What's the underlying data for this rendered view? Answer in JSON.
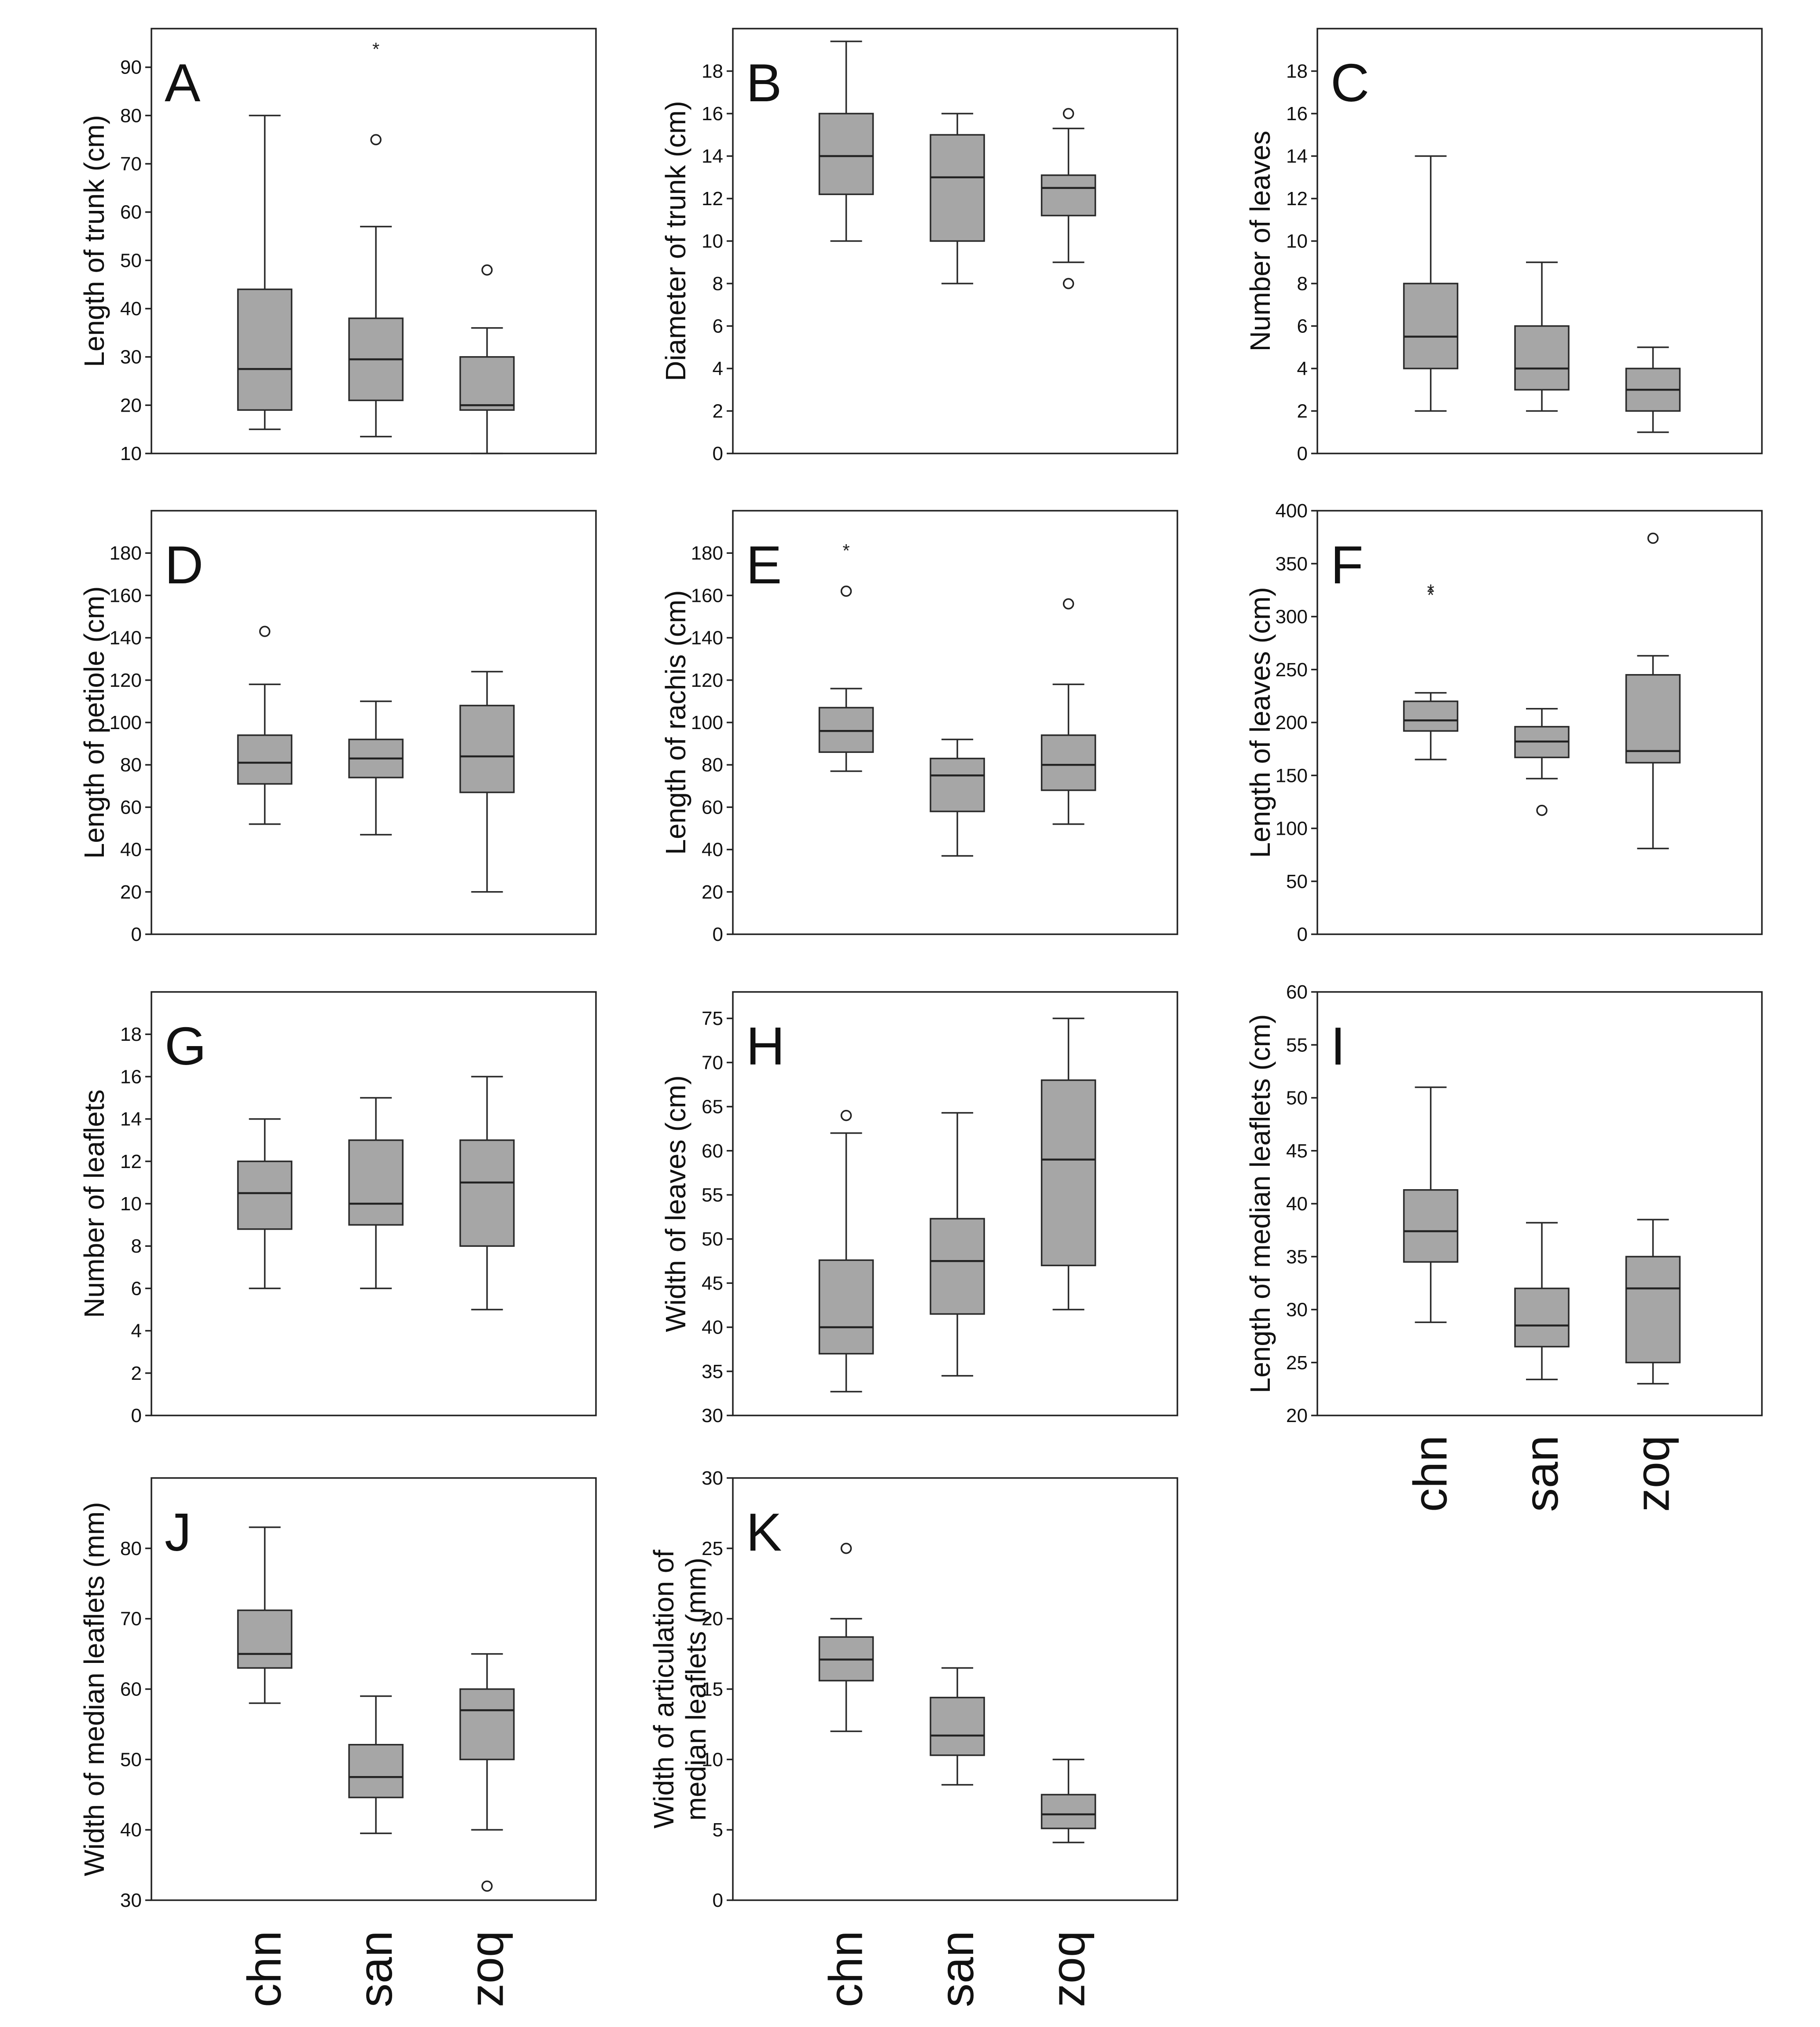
{
  "chart_data": [
    {
      "type": "boxplot",
      "panel": "A",
      "ylabel": "Length of trunk (cm)",
      "ylim": [
        10,
        98
      ],
      "yticks": [
        10,
        20,
        30,
        40,
        50,
        60,
        70,
        80,
        90
      ],
      "groups": [
        {
          "category": "chn",
          "whisker_low": 15,
          "q1": 19,
          "median": 27.5,
          "q3": 44,
          "whisker_high": 80,
          "outliers": [],
          "extremes": []
        },
        {
          "category": "san",
          "whisker_low": 13.5,
          "q1": 21,
          "median": 29.5,
          "q3": 38,
          "whisker_high": 57,
          "outliers": [
            75
          ],
          "extremes": [
            95
          ]
        },
        {
          "category": "zoq",
          "whisker_low": 10,
          "q1": 19,
          "median": 20,
          "q3": 30,
          "whisker_high": 36,
          "outliers": [
            48
          ],
          "extremes": []
        }
      ]
    },
    {
      "type": "boxplot",
      "panel": "B",
      "ylabel": "Diameter of trunk (cm)",
      "ylim": [
        0,
        20
      ],
      "yticks": [
        0,
        2,
        4,
        6,
        8,
        10,
        12,
        14,
        16,
        18
      ],
      "groups": [
        {
          "category": "chn",
          "whisker_low": 10,
          "q1": 12.2,
          "median": 14,
          "q3": 16,
          "whisker_high": 19.4,
          "outliers": [],
          "extremes": []
        },
        {
          "category": "san",
          "whisker_low": 8,
          "q1": 10,
          "median": 13,
          "q3": 15,
          "whisker_high": 16,
          "outliers": [],
          "extremes": []
        },
        {
          "category": "zoq",
          "whisker_low": 9,
          "q1": 11.2,
          "median": 12.5,
          "q3": 13.1,
          "whisker_high": 15.3,
          "outliers": [
            8,
            16
          ],
          "extremes": []
        }
      ]
    },
    {
      "type": "boxplot",
      "panel": "C",
      "ylabel": "Number of leaves",
      "ylim": [
        0,
        20
      ],
      "yticks": [
        0,
        2,
        4,
        6,
        8,
        10,
        12,
        14,
        16,
        18
      ],
      "groups": [
        {
          "category": "chn",
          "whisker_low": 2,
          "q1": 4,
          "median": 5.5,
          "q3": 8,
          "whisker_high": 14,
          "outliers": [],
          "extremes": []
        },
        {
          "category": "san",
          "whisker_low": 2,
          "q1": 3,
          "median": 4,
          "q3": 6,
          "whisker_high": 9,
          "outliers": [],
          "extremes": []
        },
        {
          "category": "zoq",
          "whisker_low": 1,
          "q1": 2,
          "median": 3,
          "q3": 4,
          "whisker_high": 5,
          "outliers": [],
          "extremes": []
        }
      ]
    },
    {
      "type": "boxplot",
      "panel": "D",
      "ylabel": "Length of petiole (cm)",
      "ylim": [
        0,
        200
      ],
      "yticks": [
        0,
        20,
        40,
        60,
        80,
        100,
        120,
        140,
        160,
        180
      ],
      "groups": [
        {
          "category": "chn",
          "whisker_low": 52,
          "q1": 71,
          "median": 81,
          "q3": 94,
          "whisker_high": 118,
          "outliers": [
            143
          ],
          "extremes": []
        },
        {
          "category": "san",
          "whisker_low": 47,
          "q1": 74,
          "median": 83,
          "q3": 92,
          "whisker_high": 110,
          "outliers": [],
          "extremes": []
        },
        {
          "category": "zoq",
          "whisker_low": 20,
          "q1": 67,
          "median": 84,
          "q3": 108,
          "whisker_high": 124,
          "outliers": [],
          "extremes": []
        }
      ]
    },
    {
      "type": "boxplot",
      "panel": "E",
      "ylabel": "Length of rachis (cm)",
      "ylim": [
        0,
        200
      ],
      "yticks": [
        0,
        20,
        40,
        60,
        80,
        100,
        120,
        140,
        160,
        180
      ],
      "groups": [
        {
          "category": "chn",
          "whisker_low": 77,
          "q1": 86,
          "median": 96,
          "q3": 107,
          "whisker_high": 116,
          "outliers": [
            162
          ],
          "extremes": [
            184
          ]
        },
        {
          "category": "san",
          "whisker_low": 37,
          "q1": 58,
          "median": 75,
          "q3": 83,
          "whisker_high": 92,
          "outliers": [],
          "extremes": []
        },
        {
          "category": "zoq",
          "whisker_low": 52,
          "q1": 68,
          "median": 80,
          "q3": 94,
          "whisker_high": 118,
          "outliers": [
            156
          ],
          "extremes": []
        }
      ]
    },
    {
      "type": "boxplot",
      "panel": "F",
      "ylabel": "Length of leaves (cm)",
      "ylim": [
        0,
        400
      ],
      "yticks": [
        0,
        50,
        100,
        150,
        200,
        250,
        300,
        350,
        400
      ],
      "groups": [
        {
          "category": "chn",
          "whisker_low": 165,
          "q1": 192,
          "median": 202,
          "q3": 220,
          "whisker_high": 228,
          "outliers": [],
          "extremes": [
            326,
            330
          ]
        },
        {
          "category": "san",
          "whisker_low": 147,
          "q1": 167,
          "median": 182,
          "q3": 196,
          "whisker_high": 213,
          "outliers": [
            117
          ],
          "extremes": []
        },
        {
          "category": "zoq",
          "whisker_low": 81,
          "q1": 162,
          "median": 173,
          "q3": 245,
          "whisker_high": 263,
          "outliers": [
            374
          ],
          "extremes": []
        }
      ]
    },
    {
      "type": "boxplot",
      "panel": "G",
      "ylabel": "Number of leaflets",
      "ylim": [
        0,
        20
      ],
      "yticks": [
        0,
        2,
        4,
        6,
        8,
        10,
        12,
        14,
        16,
        18
      ],
      "groups": [
        {
          "category": "chn",
          "whisker_low": 6,
          "q1": 8.8,
          "median": 10.5,
          "q3": 12,
          "whisker_high": 14,
          "outliers": [],
          "extremes": []
        },
        {
          "category": "san",
          "whisker_low": 6,
          "q1": 9,
          "median": 10,
          "q3": 13,
          "whisker_high": 15,
          "outliers": [],
          "extremes": []
        },
        {
          "category": "zoq",
          "whisker_low": 5,
          "q1": 8,
          "median": 11,
          "q3": 13,
          "whisker_high": 16,
          "outliers": [],
          "extremes": []
        }
      ]
    },
    {
      "type": "boxplot",
      "panel": "H",
      "ylabel": "Width of leaves (cm)",
      "ylim": [
        30,
        78
      ],
      "yticks": [
        30,
        35,
        40,
        45,
        50,
        55,
        60,
        65,
        70,
        75
      ],
      "groups": [
        {
          "category": "chn",
          "whisker_low": 32.7,
          "q1": 37,
          "median": 40,
          "q3": 47.6,
          "whisker_high": 62,
          "outliers": [
            64
          ],
          "extremes": []
        },
        {
          "category": "san",
          "whisker_low": 34.5,
          "q1": 41.5,
          "median": 47.5,
          "q3": 52.3,
          "whisker_high": 64.3,
          "outliers": [],
          "extremes": []
        },
        {
          "category": "zoq",
          "whisker_low": 42,
          "q1": 47,
          "median": 59,
          "q3": 68,
          "whisker_high": 75,
          "outliers": [],
          "extremes": []
        }
      ]
    },
    {
      "type": "boxplot",
      "panel": "I",
      "ylabel": "Length of median leaflets (cm)",
      "ylim": [
        20,
        60
      ],
      "yticks": [
        20,
        25,
        30,
        35,
        40,
        45,
        50,
        55,
        60
      ],
      "groups": [
        {
          "category": "chn",
          "whisker_low": 28.8,
          "q1": 34.5,
          "median": 37.4,
          "q3": 41.3,
          "whisker_high": 51,
          "outliers": [],
          "extremes": []
        },
        {
          "category": "san",
          "whisker_low": 23.4,
          "q1": 26.5,
          "median": 28.5,
          "q3": 32,
          "whisker_high": 38.2,
          "outliers": [],
          "extremes": []
        },
        {
          "category": "zoq",
          "whisker_low": 23,
          "q1": 25,
          "median": 32,
          "q3": 35,
          "whisker_high": 38.5,
          "outliers": [],
          "extremes": []
        }
      ]
    },
    {
      "type": "boxplot",
      "panel": "J",
      "ylabel": "Width of median leaflets (mm)",
      "ylim": [
        30,
        90
      ],
      "yticks": [
        30,
        40,
        50,
        60,
        70,
        80
      ],
      "groups": [
        {
          "category": "chn",
          "whisker_low": 58,
          "q1": 63,
          "median": 65,
          "q3": 71.2,
          "whisker_high": 83,
          "outliers": [],
          "extremes": []
        },
        {
          "category": "san",
          "whisker_low": 39.5,
          "q1": 44.6,
          "median": 47.5,
          "q3": 52.1,
          "whisker_high": 59,
          "outliers": [],
          "extremes": []
        },
        {
          "category": "zoq",
          "whisker_low": 40,
          "q1": 50,
          "median": 57,
          "q3": 60,
          "whisker_high": 65,
          "outliers": [
            32
          ],
          "extremes": []
        }
      ]
    },
    {
      "type": "boxplot",
      "panel": "K",
      "ylabel": "Width of articulation of median leaflets (mm)",
      "ylabel_lines": [
        "Width of articulation of",
        "median leaflets (mm)"
      ],
      "ylim": [
        0,
        30
      ],
      "yticks": [
        0,
        5,
        10,
        15,
        20,
        25,
        30
      ],
      "groups": [
        {
          "category": "chn",
          "whisker_low": 12,
          "q1": 15.6,
          "median": 17.1,
          "q3": 18.7,
          "whisker_high": 20,
          "outliers": [
            25
          ],
          "extremes": []
        },
        {
          "category": "san",
          "whisker_low": 8.2,
          "q1": 10.3,
          "median": 11.7,
          "q3": 14.4,
          "whisker_high": 16.5,
          "outliers": [],
          "extremes": []
        },
        {
          "category": "zoq",
          "whisker_low": 4.1,
          "q1": 5.1,
          "median": 6.1,
          "q3": 7.5,
          "whisker_high": 10,
          "outliers": [],
          "extremes": []
        }
      ]
    }
  ],
  "category_labels": [
    "chn",
    "san",
    "zoq"
  ],
  "extreme_marker": "*"
}
